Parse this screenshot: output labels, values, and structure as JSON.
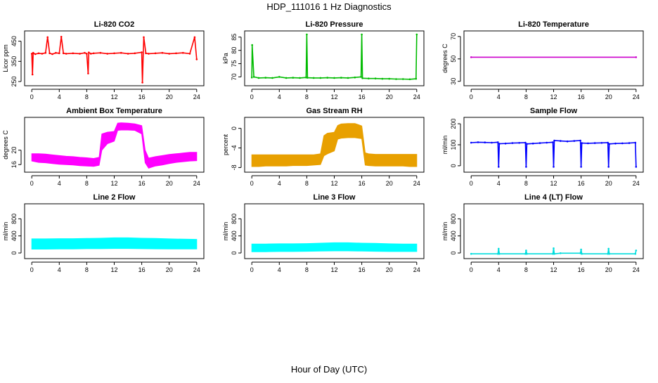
{
  "figure": {
    "title": "HDP_111016  1 Hz Diagnostics",
    "xlabel": "Hour of Day (UTC)"
  },
  "chart_data": [
    {
      "type": "line",
      "title": "Li-820 CO2",
      "ylabel": "Licor ppm",
      "color": "#ff0000",
      "xlim": [
        0,
        24
      ],
      "xticks": [
        0,
        4,
        8,
        12,
        16,
        20,
        24
      ],
      "ylim": [
        240,
        490
      ],
      "yticks": [
        250,
        350,
        450
      ],
      "x": [
        0,
        0.1,
        0.2,
        0.5,
        1,
        1.5,
        2,
        2.3,
        2.6,
        3,
        3.5,
        4,
        4.3,
        4.6,
        5,
        6,
        7,
        7.7,
        8,
        8.2,
        8.3,
        8.6,
        9,
        10,
        11,
        12,
        13,
        14,
        15,
        16,
        16.1,
        16.3,
        16.6,
        17,
        18,
        19,
        20,
        21,
        22,
        23,
        23.7,
        24
      ],
      "y": [
        388,
        285,
        392,
        386,
        390,
        388,
        392,
        470,
        390,
        386,
        392,
        390,
        472,
        390,
        388,
        390,
        388,
        392,
        388,
        290,
        394,
        388,
        390,
        392,
        388,
        390,
        392,
        388,
        390,
        395,
        245,
        470,
        390,
        388,
        390,
        392,
        388,
        390,
        392,
        388,
        470,
        360
      ],
      "series_note": "noisy ~390 ppm baseline with periodic spikes to ~470 and drops to ~250"
    },
    {
      "type": "line",
      "title": "Li-820 Pressure",
      "ylabel": "kPa",
      "color": "#00bb00",
      "xlim": [
        0,
        24
      ],
      "xticks": [
        0,
        4,
        8,
        12,
        16,
        20,
        24
      ],
      "ylim": [
        67.5,
        86.5
      ],
      "yticks": [
        70,
        75,
        80,
        85
      ],
      "x": [
        0,
        0.05,
        0.3,
        1,
        2,
        3,
        4,
        5,
        6,
        7,
        7.9,
        8,
        8.1,
        9,
        10,
        11,
        12,
        13,
        14,
        15,
        15.9,
        16,
        16.1,
        17,
        18,
        19,
        20,
        21,
        22,
        23,
        23.9,
        24
      ],
      "y": [
        69.8,
        82,
        70,
        69.6,
        69.7,
        69.6,
        70.0,
        69.6,
        69.7,
        69.6,
        69.8,
        86,
        69.7,
        69.6,
        69.6,
        69.7,
        69.6,
        69.7,
        69.6,
        69.8,
        70.0,
        86,
        69.5,
        69.4,
        69.4,
        69.3,
        69.3,
        69.2,
        69.2,
        69.1,
        69.3,
        86
      ]
    },
    {
      "type": "line",
      "title": "Li-820 Temperature",
      "ylabel": "degrees C",
      "color": "#cc00cc",
      "xlim": [
        0,
        24
      ],
      "xticks": [
        0,
        4,
        8,
        12,
        16,
        20,
        24
      ],
      "ylim": [
        28,
        73
      ],
      "yticks": [
        30,
        50,
        70
      ],
      "x": [
        0,
        24
      ],
      "y": [
        51.5,
        51.5
      ]
    },
    {
      "type": "area",
      "title": "Ambient Box Temperature",
      "ylabel": "degrees C",
      "color": "#ff00ff",
      "xlim": [
        0,
        24
      ],
      "xticks": [
        0,
        4,
        8,
        12,
        16,
        20,
        24
      ],
      "ylim": [
        14.5,
        28.5
      ],
      "yticks": [
        16,
        20
      ],
      "x": [
        0,
        1,
        2,
        3,
        4,
        5,
        6,
        7,
        8,
        9,
        9.8,
        10.2,
        11,
        12,
        12.5,
        13,
        14,
        15,
        16,
        16.5,
        17,
        18,
        19,
        20,
        21,
        22,
        23,
        24
      ],
      "ymin": [
        17.0,
        16.6,
        16.5,
        16.3,
        16.1,
        16.0,
        15.9,
        15.7,
        15.6,
        15.5,
        15.8,
        20.0,
        21.8,
        22.5,
        25.5,
        25.6,
        25.6,
        25.5,
        24.5,
        16.5,
        15.0,
        15.6,
        15.9,
        16.3,
        16.6,
        16.8,
        17.0,
        17.1
      ],
      "ymax": [
        19.0,
        19.0,
        18.9,
        18.7,
        18.5,
        18.3,
        18.2,
        18.0,
        17.9,
        17.7,
        18.0,
        24.5,
        25.0,
        25.2,
        27.5,
        27.6,
        27.5,
        27.3,
        26.8,
        20.0,
        17.8,
        18.2,
        18.5,
        18.8,
        19.0,
        19.2,
        19.4,
        19.4
      ]
    },
    {
      "type": "area",
      "title": "Gas Stream RH",
      "ylabel": "percent",
      "color": "#e8a000",
      "xlim": [
        0,
        24
      ],
      "xticks": [
        0,
        4,
        8,
        12,
        16,
        20,
        24
      ],
      "ylim": [
        -8.5,
        1.8
      ],
      "yticks": [
        -8,
        -4,
        0
      ],
      "x": [
        0,
        1,
        2,
        3,
        4,
        5,
        6,
        7,
        8,
        9,
        10,
        10.5,
        11,
        12,
        12.5,
        13,
        14,
        15,
        16,
        16.5,
        17,
        18,
        19,
        20,
        21,
        22,
        23,
        24
      ],
      "ymin": [
        -7.8,
        -7.8,
        -7.7,
        -7.7,
        -7.7,
        -7.7,
        -7.6,
        -7.6,
        -7.6,
        -7.5,
        -7.4,
        -5.6,
        -5.2,
        -4.6,
        -2.2,
        -2.0,
        -1.9,
        -1.9,
        -2.1,
        -7.5,
        -7.6,
        -7.7,
        -7.7,
        -7.7,
        -7.7,
        -7.7,
        -7.8,
        -7.8
      ],
      "ymax": [
        -5.4,
        -5.4,
        -5.4,
        -5.4,
        -5.4,
        -5.4,
        -5.4,
        -5.4,
        -5.4,
        -5.4,
        -5.2,
        -1.5,
        -1.0,
        -0.8,
        0.6,
        0.9,
        1.0,
        1.0,
        0.5,
        -5.0,
        -5.2,
        -5.3,
        -5.3,
        -5.3,
        -5.3,
        -5.3,
        -5.3,
        -5.3
      ]
    },
    {
      "type": "line",
      "title": "Sample Flow",
      "ylabel": "ml/min",
      "color": "#0000ff",
      "xlim": [
        0,
        24
      ],
      "xticks": [
        0,
        4,
        8,
        12,
        16,
        20,
        24
      ],
      "ylim": [
        -20,
        220
      ],
      "yticks": [
        0,
        100,
        200
      ],
      "x": [
        0,
        1,
        2,
        3,
        3.9,
        4,
        4.1,
        5,
        6,
        7,
        7.9,
        8,
        8.1,
        9,
        10,
        11,
        11.9,
        12,
        12.1,
        13,
        14,
        15,
        15.9,
        16,
        16.1,
        17,
        18,
        19,
        19.9,
        20,
        20.1,
        21,
        22,
        23,
        23.9,
        24
      ],
      "y": [
        110,
        112,
        111,
        110,
        112,
        -5,
        105,
        106,
        108,
        109,
        110,
        -5,
        104,
        106,
        108,
        110,
        112,
        -5,
        120,
        118,
        116,
        118,
        120,
        -5,
        108,
        107,
        108,
        109,
        110,
        -5,
        104,
        106,
        107,
        108,
        110,
        -5
      ]
    },
    {
      "type": "area",
      "title": "Line 2 Flow",
      "ylabel": "ml/min",
      "color": "#00ffff",
      "xlim": [
        0,
        24
      ],
      "xticks": [
        0,
        4,
        8,
        12,
        16,
        20,
        24
      ],
      "ylim": [
        -80,
        1100
      ],
      "yticks": [
        0,
        400,
        800
      ],
      "x": [
        0,
        2,
        4,
        6,
        8,
        10,
        12,
        14,
        16,
        18,
        20,
        22,
        24
      ],
      "ymin": [
        90,
        90,
        95,
        95,
        100,
        100,
        105,
        105,
        100,
        98,
        95,
        95,
        95
      ],
      "ymax": [
        330,
        330,
        335,
        335,
        340,
        345,
        355,
        355,
        345,
        340,
        330,
        325,
        320
      ]
    },
    {
      "type": "area",
      "title": "Line 3 Flow",
      "ylabel": "ml/min",
      "color": "#00ffff",
      "xlim": [
        0,
        24
      ],
      "xticks": [
        0,
        4,
        8,
        12,
        16,
        20,
        24
      ],
      "ylim": [
        -80,
        1100
      ],
      "yticks": [
        0,
        400,
        800
      ],
      "x": [
        0,
        2,
        4,
        6,
        8,
        10,
        12,
        14,
        16,
        18,
        20,
        22,
        24
      ],
      "ymin": [
        30,
        30,
        35,
        35,
        40,
        45,
        50,
        50,
        45,
        40,
        35,
        35,
        35
      ],
      "ymax": [
        210,
        210,
        215,
        215,
        220,
        230,
        240,
        240,
        230,
        225,
        215,
        210,
        210
      ]
    },
    {
      "type": "line",
      "title": "Line 4 (LT) Flow",
      "ylabel": "ml/min",
      "color": "#00dddd",
      "xlim": [
        0,
        24
      ],
      "xticks": [
        0,
        4,
        8,
        12,
        16,
        20,
        24
      ],
      "ylim": [
        -80,
        1100
      ],
      "yticks": [
        0,
        400,
        800
      ],
      "x": [
        0,
        3.9,
        4,
        4.1,
        7.9,
        8,
        8.1,
        11.9,
        12,
        12.1,
        13,
        15.9,
        16,
        16.1,
        19.9,
        20,
        20.1,
        23.9,
        24
      ],
      "y": [
        -20,
        -20,
        100,
        -20,
        -20,
        60,
        -20,
        -20,
        110,
        -20,
        -5,
        -5,
        80,
        -20,
        -20,
        100,
        -20,
        -20,
        60
      ]
    }
  ]
}
